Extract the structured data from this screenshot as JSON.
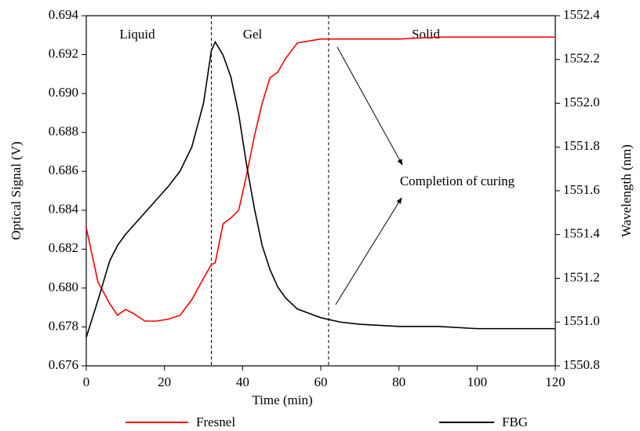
{
  "chart_data": {
    "type": "line",
    "xlabel": "Time (min)",
    "ylabel": "Optical Signal (V)",
    "y2label": "Wavelength (nm)",
    "annotations": [
      "Liquid",
      "Gel",
      "Solid",
      "Completion of curing"
    ],
    "reference_lines": [
      32,
      62
    ],
    "x": [
      0,
      3,
      6,
      8,
      10,
      12,
      15,
      18,
      21,
      24,
      27,
      30,
      32,
      33,
      35,
      37,
      39,
      41,
      43,
      45,
      47,
      49,
      51,
      54,
      57,
      60,
      65,
      70,
      80,
      90,
      100,
      110,
      120
    ],
    "series": [
      {
        "name": "Fresnel",
        "color": "#ff0000",
        "axis": "y",
        "values": [
          0.6831,
          0.6803,
          0.6792,
          0.6786,
          0.6789,
          0.6787,
          0.6783,
          0.6783,
          0.6784,
          0.6786,
          0.6794,
          0.6805,
          0.6812,
          0.6813,
          0.6833,
          0.6836,
          0.684,
          0.6858,
          0.6878,
          0.6895,
          0.6908,
          0.6911,
          0.6918,
          0.6926,
          0.6927,
          0.6928,
          0.6928,
          0.6928,
          0.6928,
          0.6929,
          0.6929,
          0.6929,
          0.6929
        ]
      },
      {
        "name": "FBG",
        "color": "#000000",
        "axis": "y2",
        "values": [
          1550.93,
          1551.1,
          1551.28,
          1551.35,
          1551.4,
          1551.44,
          1551.5,
          1551.56,
          1551.62,
          1551.69,
          1551.8,
          1552.0,
          1552.24,
          1552.28,
          1552.22,
          1552.12,
          1551.95,
          1551.72,
          1551.52,
          1551.35,
          1551.24,
          1551.16,
          1551.11,
          1551.06,
          1551.04,
          1551.02,
          1551.0,
          1550.99,
          1550.98,
          1550.98,
          1550.97,
          1550.97,
          1550.97
        ]
      }
    ],
    "xlim": [
      0,
      120
    ],
    "xticks": [
      0,
      20,
      40,
      60,
      80,
      100,
      120
    ],
    "ylim": [
      0.676,
      0.694
    ],
    "yticks": [
      0.676,
      0.678,
      {
        "value": 0.68,
        "label": "0.680"
      },
      0.682,
      0.684,
      0.686,
      0.688,
      {
        "value": 0.69,
        "label": "0.690"
      },
      0.692,
      0.694
    ],
    "y2lim": [
      1550.8,
      1552.4
    ],
    "y2ticks": [
      1550.8,
      {
        "value": 1551,
        "label": "1551.0"
      },
      1551.2,
      1551.4,
      1551.6,
      1551.8,
      {
        "value": 1552,
        "label": "1552.0"
      },
      1552.2,
      1552.4
    ],
    "legend": "bottom"
  }
}
